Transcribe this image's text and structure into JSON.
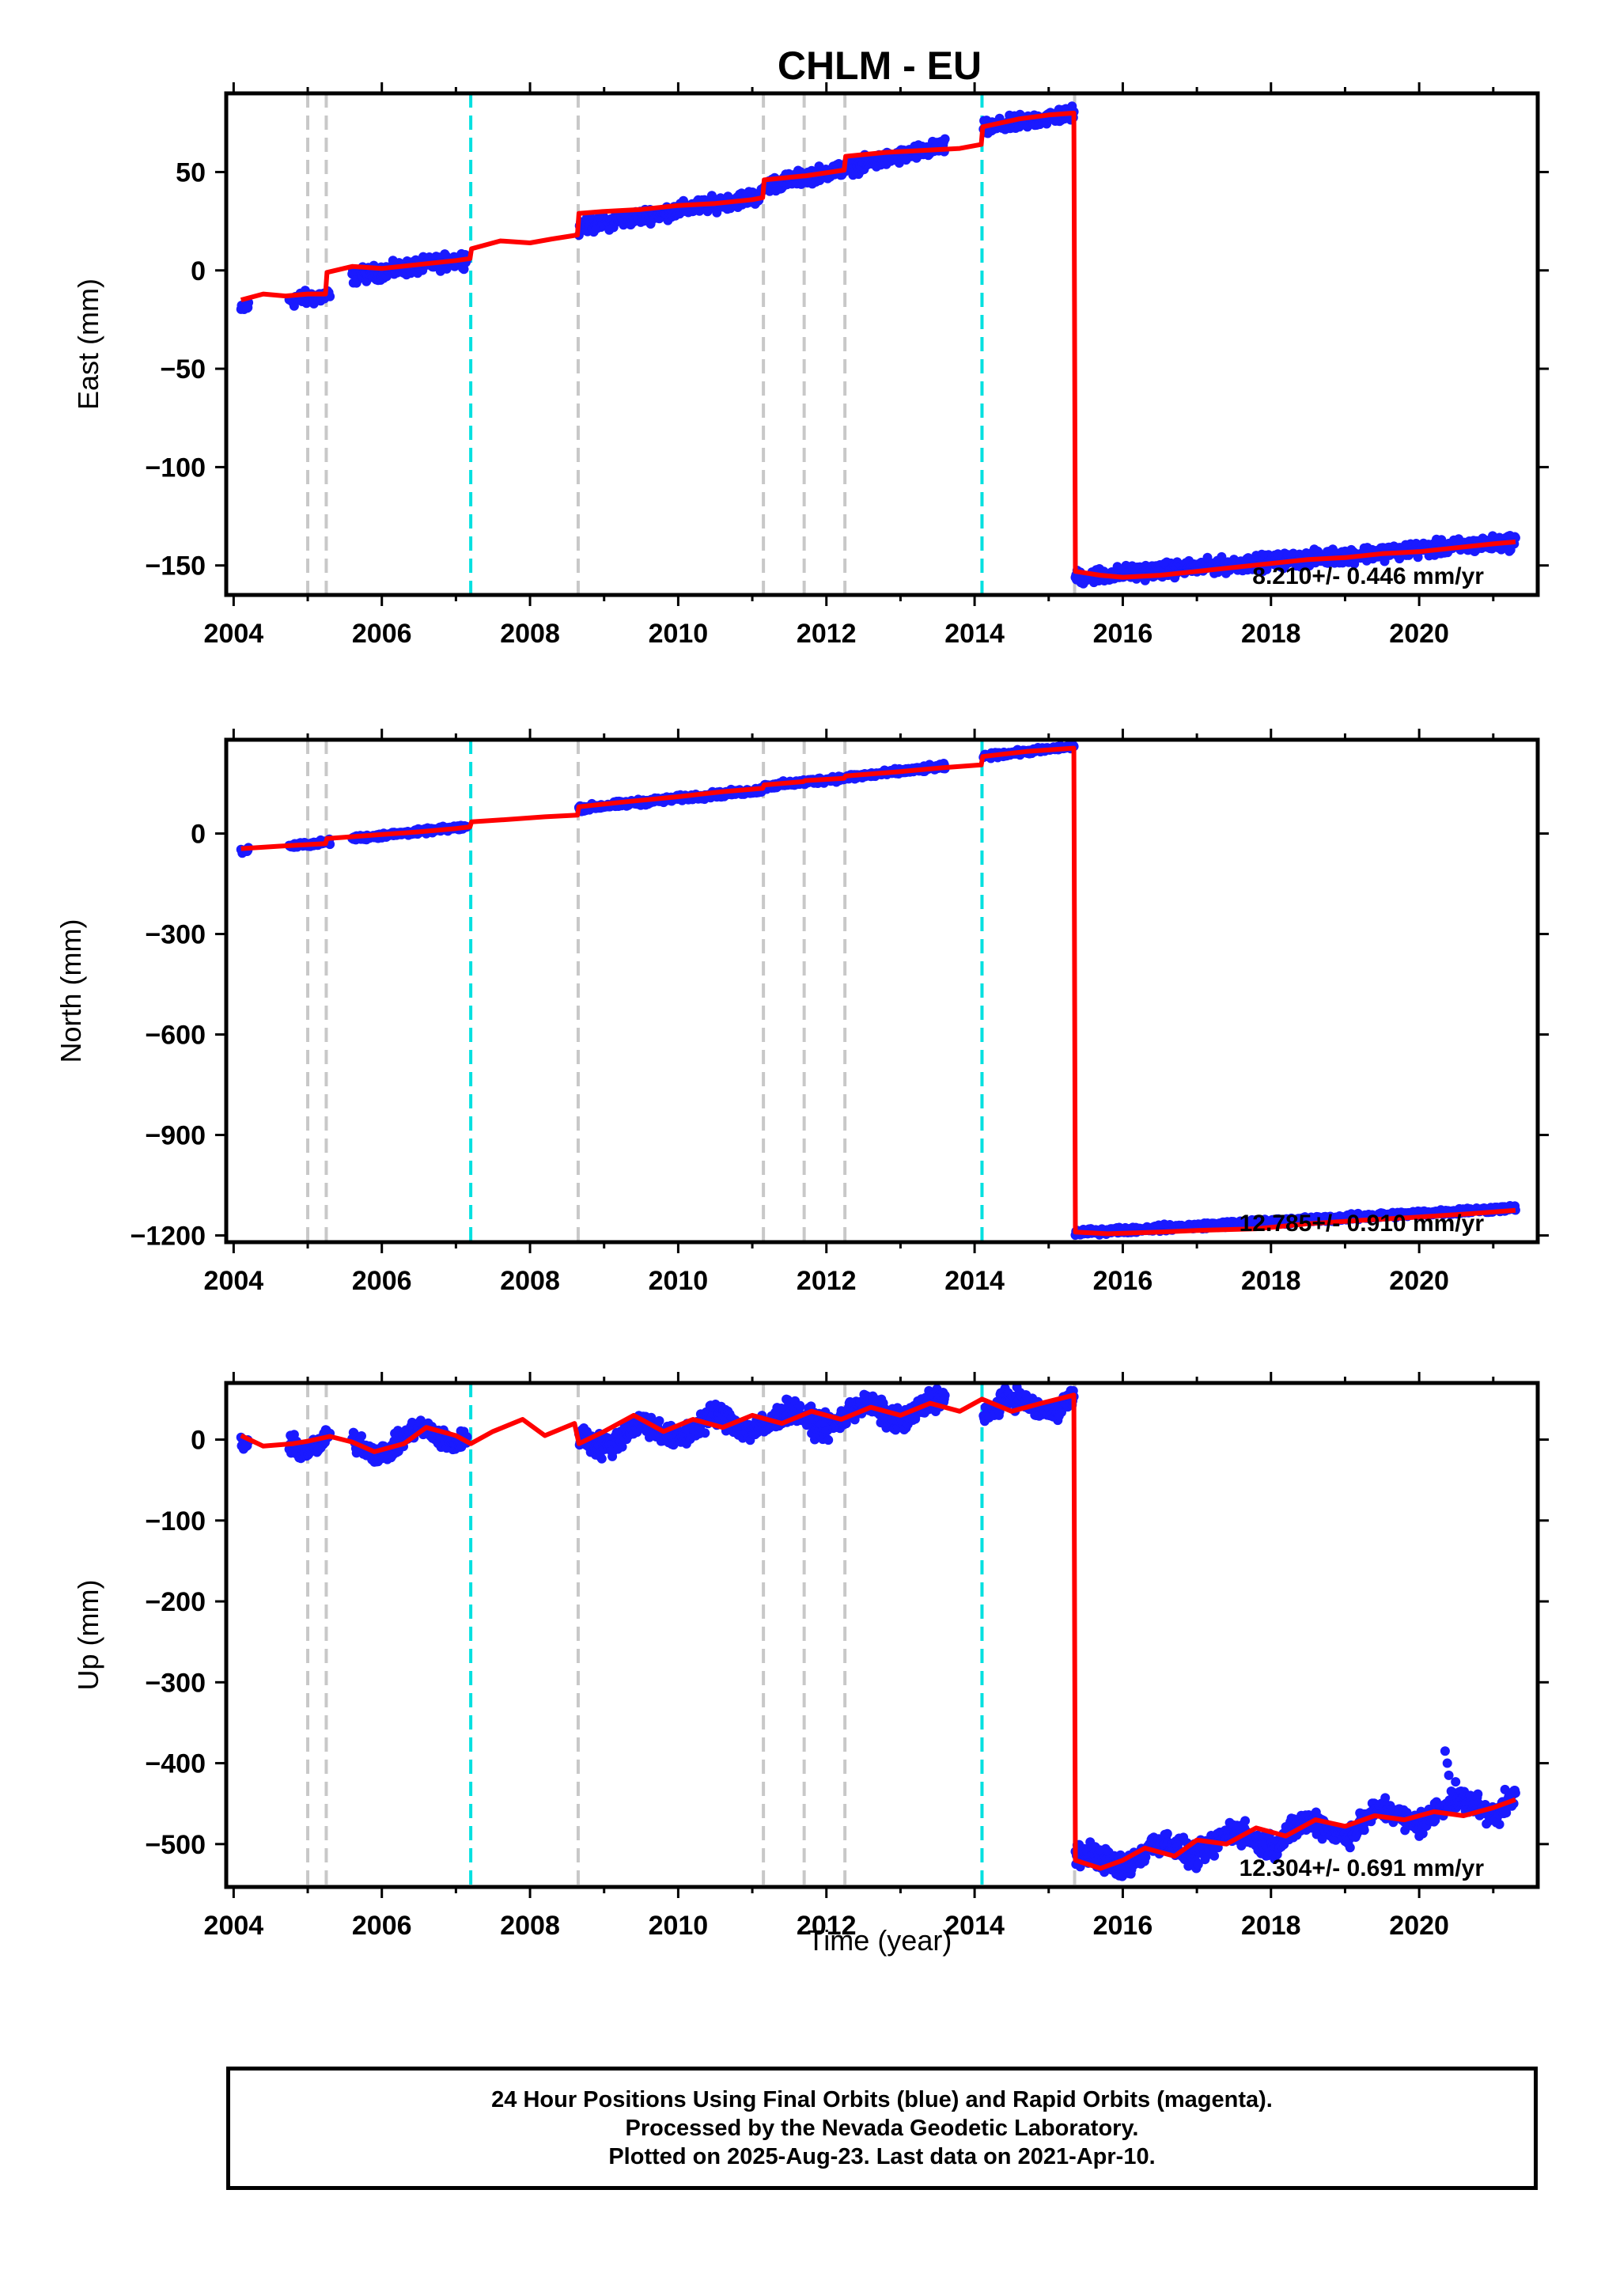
{
  "title": "CHLM - EU",
  "xlabel": "Time (year)",
  "footer": {
    "line1": "24 Hour Positions Using Final Orbits (blue) and Rapid Orbits (magenta).",
    "line2": "Processed by the Nevada Geodetic Laboratory.",
    "line3": "Plotted on 2025-Aug-23. Last data on 2021-Apr-10."
  },
  "colors": {
    "data": "#1a1aff",
    "model": "#ff0000",
    "equipment_change": "#c8c8c8",
    "earthquake": "#00e0e0"
  },
  "chart_data": [
    {
      "type": "scatter",
      "component": "East",
      "ylabel": "East (mm)",
      "xlim": [
        2003.9,
        2021.6
      ],
      "ylim": [
        -165,
        90
      ],
      "xticks": [
        2004,
        2006,
        2008,
        2010,
        2012,
        2014,
        2016,
        2018,
        2020
      ],
      "yticks": [
        -150,
        -100,
        -50,
        0,
        50
      ],
      "rate_text": "8.210+/- 0.446 mm/yr",
      "equipment_changes": [
        2005.0,
        2005.25,
        2008.65,
        2011.15,
        2011.7,
        2012.25
      ],
      "earthquakes": [
        2007.2,
        2014.1
      ],
      "offset_epoch": 2015.35,
      "model": [
        [
          2004.1,
          -15
        ],
        [
          2004.4,
          -12
        ],
        [
          2004.7,
          -13
        ],
        [
          2005.0,
          -12
        ],
        [
          2005.24,
          -12
        ],
        [
          2005.26,
          -1
        ],
        [
          2005.6,
          2
        ],
        [
          2006.0,
          1
        ],
        [
          2006.5,
          3
        ],
        [
          2007.0,
          5
        ],
        [
          2007.19,
          6
        ],
        [
          2007.21,
          11
        ],
        [
          2007.6,
          15
        ],
        [
          2008.0,
          14
        ],
        [
          2008.3,
          16
        ],
        [
          2008.64,
          18
        ],
        [
          2008.66,
          29
        ],
        [
          2009.0,
          30
        ],
        [
          2009.5,
          31
        ],
        [
          2010.0,
          33
        ],
        [
          2010.5,
          34
        ],
        [
          2011.0,
          36
        ],
        [
          2011.14,
          37
        ],
        [
          2011.16,
          46
        ],
        [
          2011.69,
          48
        ],
        [
          2011.71,
          48
        ],
        [
          2012.24,
          51
        ],
        [
          2012.26,
          58
        ],
        [
          2012.8,
          60
        ],
        [
          2013.3,
          61
        ],
        [
          2013.8,
          62
        ],
        [
          2014.09,
          64
        ],
        [
          2014.11,
          73
        ],
        [
          2014.6,
          77
        ],
        [
          2015.0,
          79
        ],
        [
          2015.34,
          80
        ],
        [
          2015.36,
          -153
        ],
        [
          2015.7,
          -155
        ],
        [
          2016.0,
          -156
        ],
        [
          2016.5,
          -155
        ],
        [
          2017.0,
          -153
        ],
        [
          2017.5,
          -151
        ],
        [
          2018.0,
          -149
        ],
        [
          2018.5,
          -147
        ],
        [
          2019.0,
          -146
        ],
        [
          2019.5,
          -144
        ],
        [
          2020.0,
          -143
        ],
        [
          2020.5,
          -141
        ],
        [
          2021.0,
          -139
        ],
        [
          2021.3,
          -138
        ]
      ],
      "data_segments": [
        {
          "x": [
            2004.1,
            2004.2
          ],
          "y": [
            -20,
            -18
          ],
          "noise": 2
        },
        {
          "x": [
            2004.75,
            2005.3
          ],
          "y": [
            -15,
            -13
          ],
          "noise": 3
        },
        {
          "x": [
            2005.6,
            2007.15
          ],
          "y": [
            -3,
            6
          ],
          "noise": 3
        },
        {
          "x": [
            2008.66,
            2011.13
          ],
          "y": [
            22,
            38
          ],
          "noise": 3
        },
        {
          "x": [
            2011.16,
            2013.6
          ],
          "y": [
            43,
            63
          ],
          "noise": 3
        },
        {
          "x": [
            2014.12,
            2015.34
          ],
          "y": [
            72,
            80
          ],
          "noise": 3
        },
        {
          "x": [
            2015.36,
            2021.3
          ],
          "y": [
            -156,
            -138
          ],
          "noise": 3
        }
      ]
    },
    {
      "type": "scatter",
      "component": "North",
      "ylabel": "North (mm)",
      "xlim": [
        2003.9,
        2021.6
      ],
      "ylim": [
        -1220,
        280
      ],
      "xticks": [
        2004,
        2006,
        2008,
        2010,
        2012,
        2014,
        2016,
        2018,
        2020
      ],
      "yticks": [
        -1200,
        -900,
        -600,
        -300,
        0
      ],
      "rate_text": "12.785+/- 0.910 mm/yr",
      "equipment_changes": [
        2005.0,
        2005.25,
        2008.65,
        2011.15,
        2011.7,
        2012.25
      ],
      "earthquakes": [
        2007.2,
        2014.1
      ],
      "offset_epoch": 2015.35,
      "model": [
        [
          2004.1,
          -45
        ],
        [
          2004.6,
          -38
        ],
        [
          2005.0,
          -33
        ],
        [
          2005.24,
          -30
        ],
        [
          2005.26,
          -15
        ],
        [
          2006.0,
          -3
        ],
        [
          2006.5,
          5
        ],
        [
          2007.0,
          15
        ],
        [
          2007.19,
          20
        ],
        [
          2007.21,
          35
        ],
        [
          2007.7,
          42
        ],
        [
          2008.2,
          50
        ],
        [
          2008.64,
          55
        ],
        [
          2008.66,
          80
        ],
        [
          2009.3,
          95
        ],
        [
          2010.0,
          110
        ],
        [
          2010.6,
          125
        ],
        [
          2011.14,
          135
        ],
        [
          2011.16,
          145
        ],
        [
          2011.69,
          155
        ],
        [
          2011.71,
          158
        ],
        [
          2012.24,
          165
        ],
        [
          2012.26,
          172
        ],
        [
          2013.0,
          185
        ],
        [
          2013.6,
          197
        ],
        [
          2014.09,
          205
        ],
        [
          2014.11,
          230
        ],
        [
          2014.7,
          245
        ],
        [
          2015.34,
          255
        ],
        [
          2015.36,
          -1190
        ],
        [
          2015.8,
          -1195
        ],
        [
          2016.5,
          -1190
        ],
        [
          2017.0,
          -1185
        ],
        [
          2017.8,
          -1180
        ],
        [
          2018.5,
          -1165
        ],
        [
          2019.2,
          -1155
        ],
        [
          2020.0,
          -1145
        ],
        [
          2020.7,
          -1135
        ],
        [
          2021.3,
          -1125
        ]
      ],
      "data_segments": [
        {
          "x": [
            2004.1,
            2004.2
          ],
          "y": [
            -52,
            -48
          ],
          "noise": 6
        },
        {
          "x": [
            2004.75,
            2005.3
          ],
          "y": [
            -38,
            -25
          ],
          "noise": 6
        },
        {
          "x": [
            2005.6,
            2007.15
          ],
          "y": [
            -15,
            20
          ],
          "noise": 6
        },
        {
          "x": [
            2008.66,
            2011.13
          ],
          "y": [
            75,
            130
          ],
          "noise": 7
        },
        {
          "x": [
            2011.16,
            2013.6
          ],
          "y": [
            140,
            200
          ],
          "noise": 7
        },
        {
          "x": [
            2014.12,
            2015.34
          ],
          "y": [
            230,
            260
          ],
          "noise": 6
        },
        {
          "x": [
            2015.36,
            2021.3
          ],
          "y": [
            -1192,
            -1118
          ],
          "noise": 7
        }
      ]
    },
    {
      "type": "scatter",
      "component": "Up",
      "ylabel": "Up (mm)",
      "xlim": [
        2003.9,
        2021.6
      ],
      "ylim": [
        -553,
        70
      ],
      "xticks": [
        2004,
        2006,
        2008,
        2010,
        2012,
        2014,
        2016,
        2018,
        2020
      ],
      "yticks": [
        -500,
        -400,
        -300,
        -200,
        -100,
        0
      ],
      "rate_text": "12.304+/- 0.691 mm/yr",
      "equipment_changes": [
        2005.0,
        2005.25,
        2008.65,
        2011.15,
        2011.7,
        2012.25
      ],
      "earthquakes": [
        2007.2,
        2014.1
      ],
      "offset_epoch": 2015.35,
      "model": [
        [
          2004.1,
          5
        ],
        [
          2004.4,
          -8
        ],
        [
          2004.8,
          -5
        ],
        [
          2005.0,
          -2
        ],
        [
          2005.3,
          4
        ],
        [
          2005.6,
          -3
        ],
        [
          2005.9,
          -15
        ],
        [
          2006.3,
          -5
        ],
        [
          2006.6,
          15
        ],
        [
          2007.0,
          5
        ],
        [
          2007.2,
          -5
        ],
        [
          2007.5,
          10
        ],
        [
          2007.9,
          25
        ],
        [
          2008.2,
          5
        ],
        [
          2008.6,
          20
        ],
        [
          2008.66,
          -5
        ],
        [
          2009.0,
          10
        ],
        [
          2009.4,
          30
        ],
        [
          2009.8,
          10
        ],
        [
          2010.2,
          25
        ],
        [
          2010.6,
          15
        ],
        [
          2011.0,
          30
        ],
        [
          2011.4,
          20
        ],
        [
          2011.8,
          35
        ],
        [
          2012.2,
          25
        ],
        [
          2012.6,
          40
        ],
        [
          2013.0,
          30
        ],
        [
          2013.4,
          45
        ],
        [
          2013.8,
          35
        ],
        [
          2014.1,
          50
        ],
        [
          2014.5,
          35
        ],
        [
          2014.9,
          45
        ],
        [
          2015.34,
          55
        ],
        [
          2015.36,
          -520
        ],
        [
          2015.7,
          -530
        ],
        [
          2016.0,
          -520
        ],
        [
          2016.3,
          -505
        ],
        [
          2016.7,
          -515
        ],
        [
          2017.0,
          -495
        ],
        [
          2017.4,
          -500
        ],
        [
          2017.8,
          -480
        ],
        [
          2018.2,
          -490
        ],
        [
          2018.6,
          -470
        ],
        [
          2019.0,
          -478
        ],
        [
          2019.4,
          -465
        ],
        [
          2019.8,
          -470
        ],
        [
          2020.2,
          -460
        ],
        [
          2020.6,
          -465
        ],
        [
          2021.0,
          -455
        ],
        [
          2021.3,
          -445
        ]
      ],
      "data_segments": [
        {
          "x": [
            2004.1,
            2004.2
          ],
          "y": [
            5,
            0
          ],
          "noise": 8
        },
        {
          "x": [
            2004.75,
            2005.3
          ],
          "y": [
            -5,
            2
          ],
          "noise": 10
        },
        {
          "x": [
            2005.6,
            2007.15
          ],
          "y": [
            -10,
            10
          ],
          "noise": 10
        },
        {
          "x": [
            2008.66,
            2011.13
          ],
          "y": [
            0,
            25
          ],
          "noise": 12
        },
        {
          "x": [
            2011.16,
            2013.6
          ],
          "y": [
            20,
            40
          ],
          "noise": 12
        },
        {
          "x": [
            2014.12,
            2015.34
          ],
          "y": [
            35,
            50
          ],
          "noise": 10
        },
        {
          "x": [
            2015.36,
            2021.3
          ],
          "y": [
            -525,
            -445
          ],
          "noise": 12
        }
      ],
      "outliers": [
        [
          2020.35,
          -385
        ],
        [
          2020.38,
          -400
        ],
        [
          2020.4,
          -415
        ]
      ]
    }
  ]
}
